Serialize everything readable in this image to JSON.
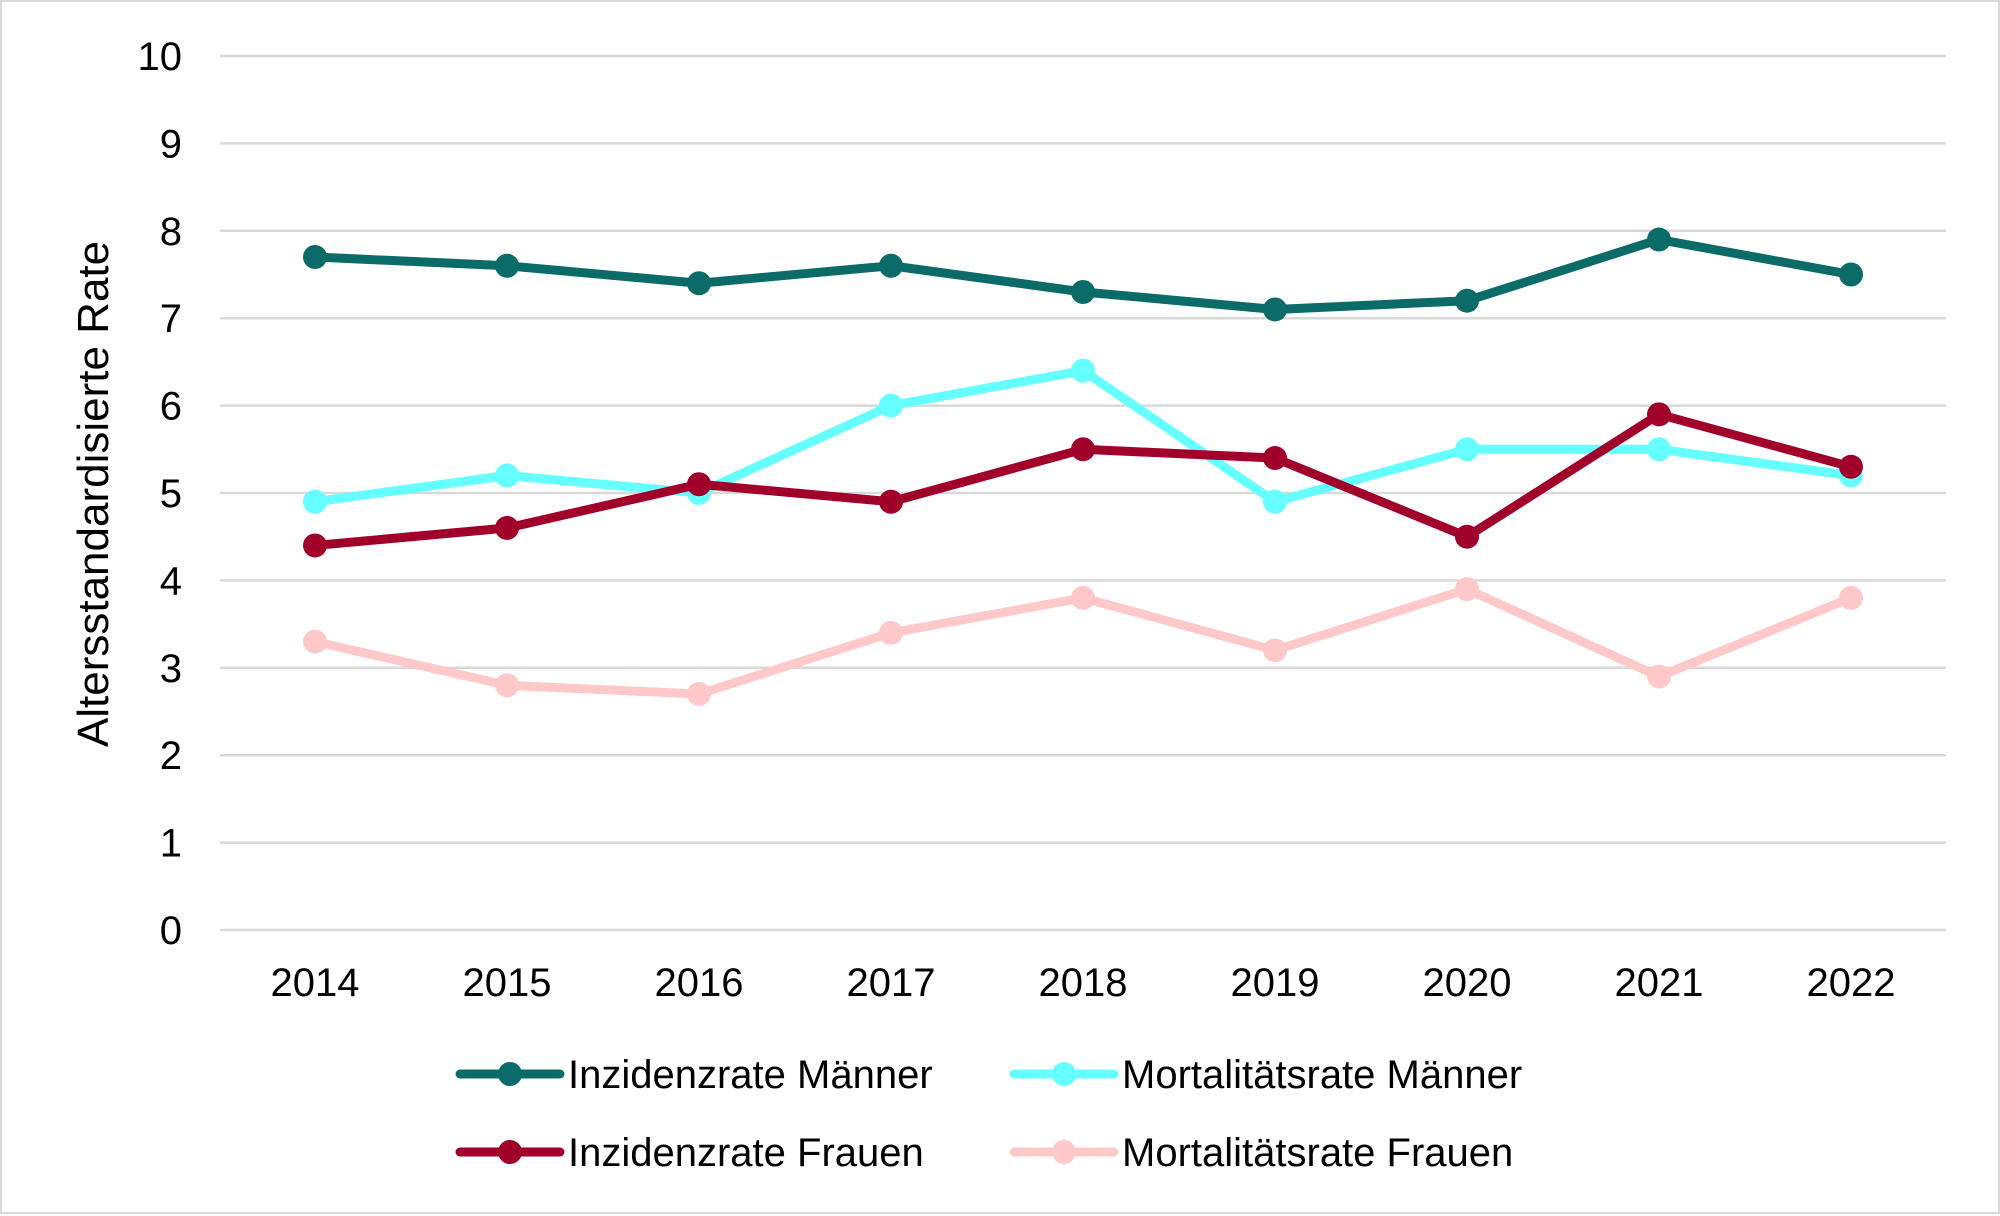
{
  "chart_data": {
    "type": "line",
    "title": "",
    "xlabel": "",
    "ylabel": "Altersstandardisierte Rate",
    "ylim": [
      0,
      10
    ],
    "yticks": [
      0,
      1,
      2,
      3,
      4,
      5,
      6,
      7,
      8,
      9,
      10
    ],
    "grid": "horizontal",
    "legend_position": "bottom",
    "x": [
      "2014",
      "2015",
      "2016",
      "2017",
      "2018",
      "2019",
      "2020",
      "2021",
      "2022"
    ],
    "series": [
      {
        "name": "Inzidenzrate Männer",
        "color": "#0b6b68",
        "values": [
          7.7,
          7.6,
          7.4,
          7.6,
          7.3,
          7.1,
          7.2,
          7.9,
          7.5
        ]
      },
      {
        "name": "Mortalitätsrate Männer",
        "color": "#66ffff",
        "values": [
          4.9,
          5.2,
          5.0,
          6.0,
          6.4,
          4.9,
          5.5,
          5.5,
          5.2
        ]
      },
      {
        "name": "Inzidenzrate Frauen",
        "color": "#a0002a",
        "values": [
          4.4,
          4.6,
          5.1,
          4.9,
          5.5,
          5.4,
          4.5,
          5.9,
          5.3
        ]
      },
      {
        "name": "Mortalitätsrate Frauen",
        "color": "#ffc9c9",
        "values": [
          3.3,
          2.8,
          2.7,
          3.4,
          3.8,
          3.2,
          3.9,
          2.9,
          3.8
        ]
      }
    ]
  }
}
